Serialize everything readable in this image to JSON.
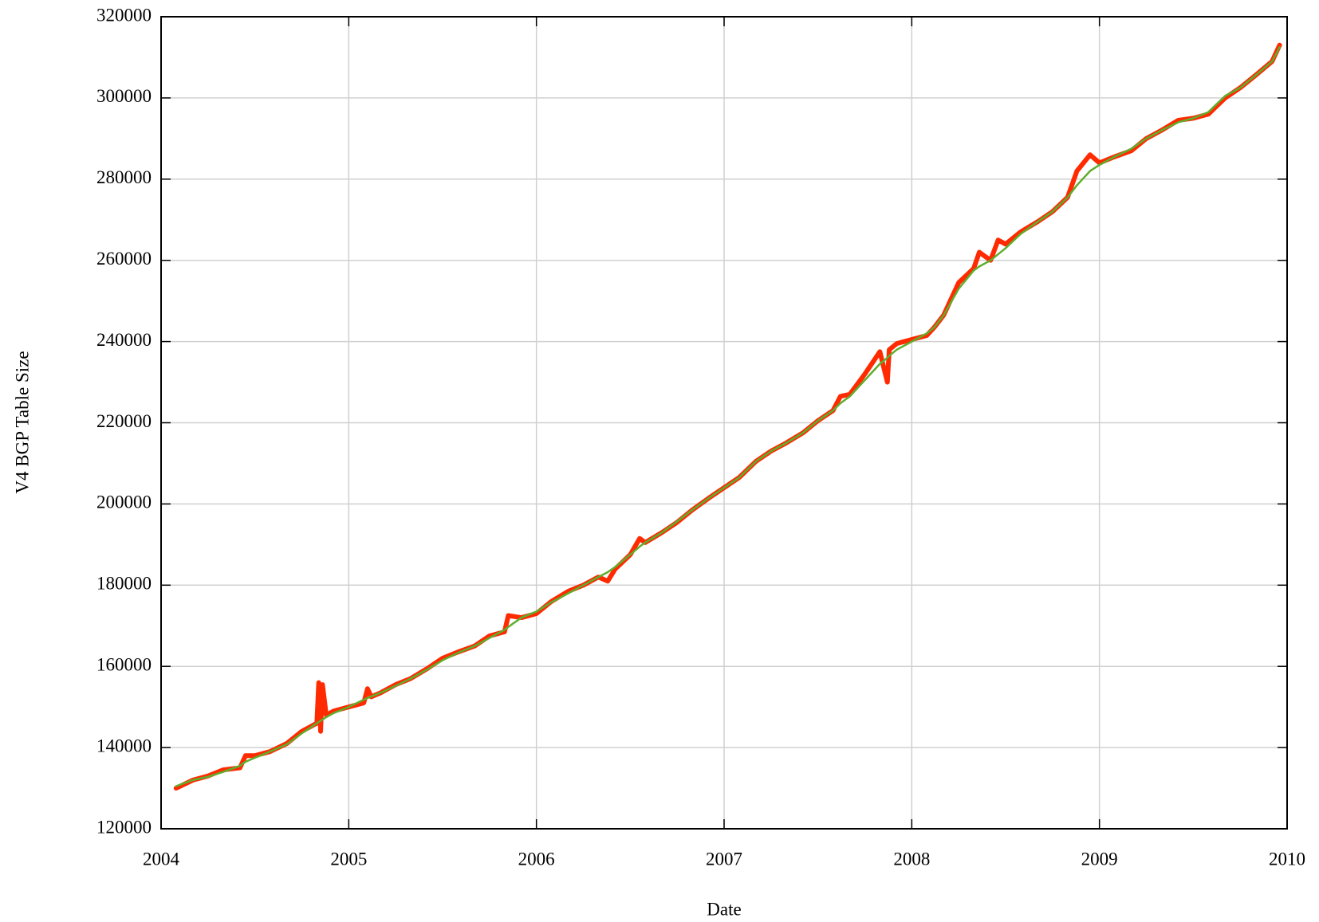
{
  "chart_data": {
    "type": "line",
    "x_label": "Date",
    "y_label": "V4 BGP Table Size",
    "x": [
      2004.08,
      2004.17,
      2004.25,
      2004.33,
      2004.42,
      2004.45,
      2004.5,
      2004.58,
      2004.67,
      2004.75,
      2004.83,
      2004.84,
      2004.85,
      2004.86,
      2004.88,
      2004.92,
      2005.0,
      2005.08,
      2005.1,
      2005.12,
      2005.17,
      2005.25,
      2005.33,
      2005.42,
      2005.5,
      2005.58,
      2005.67,
      2005.75,
      2005.83,
      2005.85,
      2005.92,
      2006.0,
      2006.08,
      2006.17,
      2006.25,
      2006.33,
      2006.38,
      2006.42,
      2006.5,
      2006.55,
      2006.58,
      2006.67,
      2006.75,
      2006.83,
      2006.92,
      2007.0,
      2007.08,
      2007.17,
      2007.25,
      2007.33,
      2007.42,
      2007.5,
      2007.58,
      2007.62,
      2007.67,
      2007.75,
      2007.83,
      2007.87,
      2007.88,
      2007.92,
      2008.0,
      2008.08,
      2008.12,
      2008.17,
      2008.25,
      2008.33,
      2008.36,
      2008.42,
      2008.46,
      2008.5,
      2008.58,
      2008.67,
      2008.75,
      2008.83,
      2008.88,
      2008.95,
      2009.0,
      2009.08,
      2009.17,
      2009.25,
      2009.33,
      2009.42,
      2009.5,
      2009.58,
      2009.67,
      2009.75,
      2009.83,
      2009.92,
      2009.96
    ],
    "series": [
      {
        "color": "#ff2a00",
        "width": 6,
        "values": [
          130000,
          132000,
          133000,
          134500,
          135000,
          138000,
          138000,
          139000,
          141000,
          144000,
          146000,
          156000,
          144000,
          155500,
          148000,
          149000,
          150000,
          151000,
          154500,
          152500,
          153500,
          155500,
          157000,
          159500,
          162000,
          163500,
          165000,
          167500,
          168500,
          172500,
          172000,
          173000,
          176000,
          178500,
          180000,
          182000,
          181000,
          184000,
          187500,
          191500,
          190500,
          193000,
          195500,
          198500,
          201500,
          204000,
          206500,
          210500,
          213000,
          215000,
          217500,
          220500,
          223000,
          226500,
          227000,
          232000,
          237500,
          230000,
          238000,
          239500,
          240500,
          241500,
          243500,
          246500,
          254500,
          258000,
          262000,
          260000,
          265000,
          264000,
          267000,
          269500,
          272000,
          275500,
          282000,
          286000,
          284000,
          285500,
          287000,
          290000,
          292000,
          294500,
          295000,
          296000,
          300000,
          302500,
          305500,
          309000,
          313000
        ]
      },
      {
        "color": "#5fae2e",
        "width": 2.5,
        "values": [
          130500,
          132000,
          132800,
          134000,
          135500,
          136500,
          137500,
          139000,
          140800,
          143500,
          146000,
          146300,
          146600,
          146900,
          147500,
          148500,
          150000,
          151800,
          152200,
          152600,
          153500,
          155200,
          157000,
          159300,
          161500,
          163300,
          165000,
          167000,
          169000,
          169700,
          172000,
          173500,
          175800,
          178000,
          180000,
          182000,
          183200,
          184500,
          187500,
          189500,
          190500,
          193000,
          195700,
          198500,
          201500,
          204000,
          206500,
          210500,
          213000,
          215000,
          217500,
          220500,
          223000,
          224800,
          226500,
          230500,
          234500,
          236000,
          236500,
          238000,
          240000,
          242000,
          243500,
          246500,
          253000,
          257500,
          258500,
          260000,
          261500,
          263000,
          266500,
          269500,
          272000,
          275500,
          278500,
          282000,
          283500,
          285500,
          287500,
          290000,
          292000,
          294000,
          295000,
          296500,
          300500,
          302500,
          305500,
          309000,
          312500
        ]
      }
    ],
    "xlim": [
      2004,
      2010
    ],
    "xticks": [
      2004,
      2005,
      2006,
      2007,
      2008,
      2009,
      2010
    ],
    "ylim": [
      120000,
      320000
    ],
    "yticks": [
      120000,
      140000,
      160000,
      180000,
      200000,
      220000,
      240000,
      260000,
      280000,
      300000,
      320000
    ],
    "grid": true
  }
}
